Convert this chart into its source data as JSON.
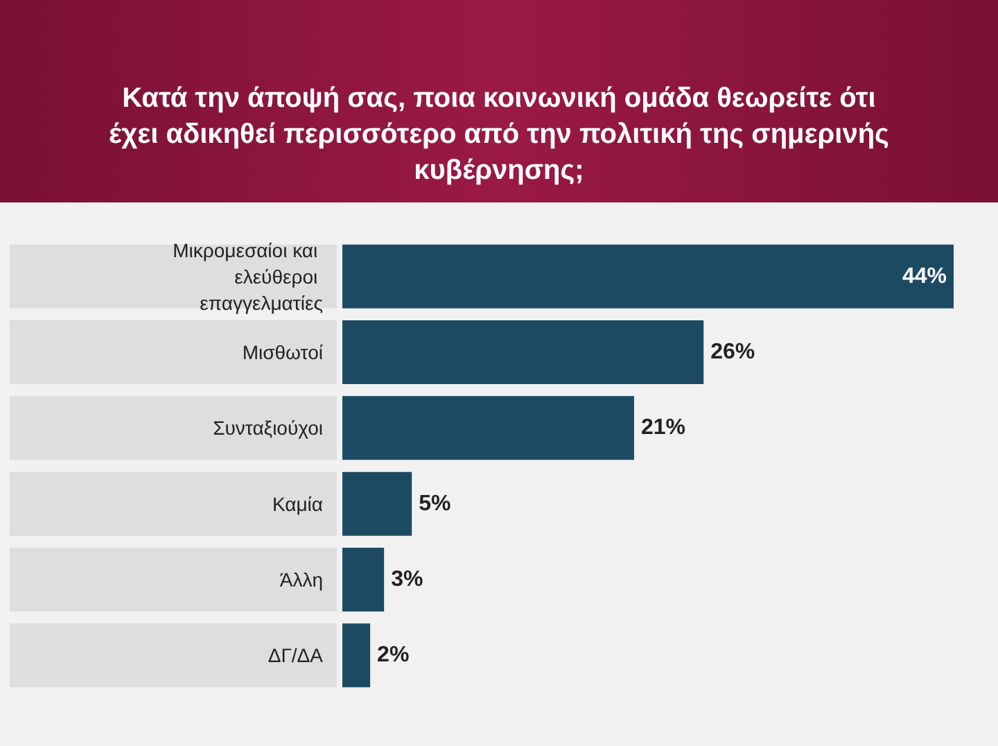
{
  "chart_data": {
    "type": "bar",
    "orientation": "horizontal",
    "title": "Κατά την άποψή σας, ποια κοινωνική ομάδα θεωρείτε ότι έχει αδικηθεί περισσότερο από την πολιτική της σημερινής κυβέρνησης;",
    "categories": [
      "Μικρομεσαίοι και ελεύθεροι επαγγελματίες",
      "Μισθωτοί",
      "Συνταξιούχοι",
      "Καμία",
      "Άλλη",
      "ΔΓ/ΔΑ"
    ],
    "values": [
      44,
      26,
      21,
      5,
      3,
      2
    ],
    "value_labels": [
      "44%",
      "26%",
      "21%",
      "5%",
      "3%",
      "2%"
    ],
    "color": "#1d4a63"
  }
}
